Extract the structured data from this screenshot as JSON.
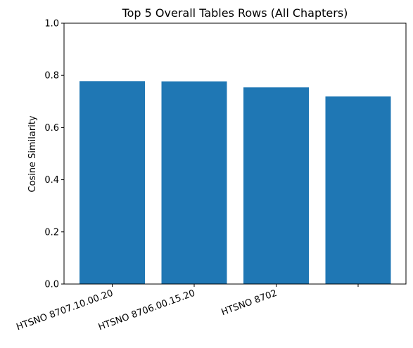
{
  "chart_data": {
    "type": "bar",
    "title": "Top 5 Overall Tables Rows (All Chapters)",
    "xlabel": "",
    "ylabel": "Cosine Similarity",
    "categories": [
      "HTSNO 8707.10.00.20",
      "HTSNO 8706.00.15.20",
      "HTSNO 8702",
      ""
    ],
    "values": [
      0.778,
      0.777,
      0.754,
      0.719
    ],
    "ylim": [
      0,
      1.0
    ],
    "yticks": [
      "0.0",
      "0.2",
      "0.4",
      "0.6",
      "0.8",
      "1.0"
    ],
    "grid": false,
    "bar_color": "#1f77b4"
  }
}
